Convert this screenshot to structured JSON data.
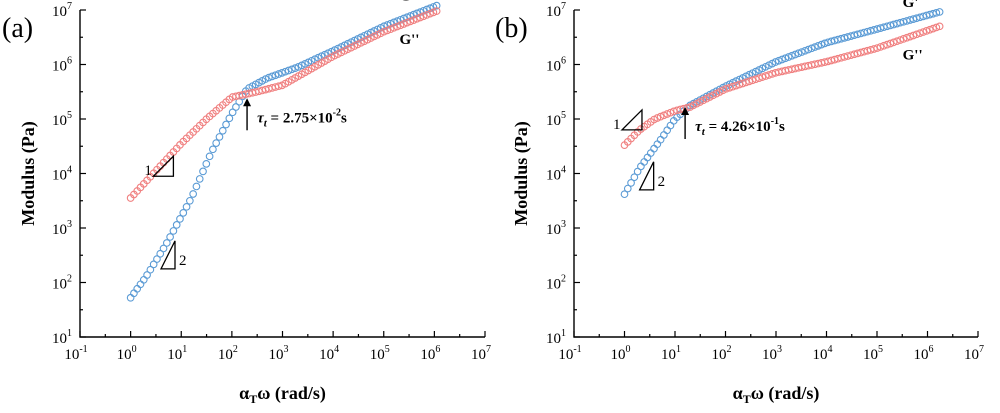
{
  "chart_data": [
    {
      "panel": "(a)",
      "type": "scatter",
      "xlabel_base": "α",
      "xlabel_sub": "T",
      "xlabel_rest": "ω (rad/s)",
      "ylabel": "Modulus (Pa)",
      "xscale": "log",
      "yscale": "log",
      "xlim_exp": [
        -1,
        7
      ],
      "ylim_exp": [
        1,
        7
      ],
      "x_tick_exponents": [
        "-1",
        "0",
        "1",
        "2",
        "3",
        "4",
        "5",
        "6",
        "7"
      ],
      "y_tick_exponents": [
        "1",
        "2",
        "3",
        "4",
        "5",
        "6",
        "7"
      ],
      "tick_base": "10",
      "series": [
        {
          "name": "G'",
          "color": "#5b9bd5",
          "curve": [
            [
              0,
              1.72
            ],
            [
              0.3,
              2.1
            ],
            [
              0.7,
              2.7
            ],
            [
              1.2,
              3.55
            ],
            [
              1.6,
              4.4
            ],
            [
              2.0,
              5.1
            ],
            [
              2.3,
              5.55
            ],
            [
              2.7,
              5.75
            ],
            [
              3.3,
              5.95
            ],
            [
              4.0,
              6.25
            ],
            [
              5.0,
              6.7
            ],
            [
              6.1,
              7.1
            ]
          ]
        },
        {
          "name": "G''",
          "color": "#f08080",
          "curve": [
            [
              0,
              3.55
            ],
            [
              0.5,
              4.05
            ],
            [
              1.0,
              4.55
            ],
            [
              1.5,
              5.0
            ],
            [
              2.0,
              5.4
            ],
            [
              2.5,
              5.5
            ],
            [
              3.0,
              5.62
            ],
            [
              4.0,
              6.15
            ],
            [
              5.0,
              6.6
            ],
            [
              6.1,
              7.0
            ]
          ]
        }
      ],
      "series_labels": [
        "G'",
        "G''"
      ],
      "annotations": {
        "crossover": {
          "tau_symbol": "τ",
          "tau_sub": "t",
          "text": " = 2.75×10",
          "exponent": "-2",
          "unit": "s",
          "arrow_x_exp": 2.3,
          "arrow_tip_y_exp": 5.38
        },
        "slope_g2": {
          "label": "1",
          "slope": 1,
          "x_exp": 0.45,
          "y_exp": 3.95
        },
        "slope_g1": {
          "label": "2",
          "slope": 2,
          "x_exp": 0.6,
          "y_exp": 2.25
        }
      }
    },
    {
      "panel": "(b)",
      "type": "scatter",
      "xlabel_base": "α",
      "xlabel_sub": "T",
      "xlabel_rest": "ω (rad/s)",
      "ylabel": "Modulus (Pa)",
      "xscale": "log",
      "yscale": "log",
      "xlim_exp": [
        -1,
        7
      ],
      "ylim_exp": [
        1,
        7
      ],
      "x_tick_exponents": [
        "-1",
        "0",
        "1",
        "2",
        "3",
        "4",
        "5",
        "6",
        "7"
      ],
      "y_tick_exponents": [
        "1",
        "2",
        "3",
        "4",
        "5",
        "6",
        "7"
      ],
      "tick_base": "10",
      "series": [
        {
          "name": "G'",
          "color": "#5b9bd5",
          "curve": [
            [
              0,
              3.62
            ],
            [
              0.3,
              4.1
            ],
            [
              0.7,
              4.6
            ],
            [
              1.0,
              5.0
            ],
            [
              1.3,
              5.25
            ],
            [
              2.0,
              5.6
            ],
            [
              3.0,
              6.05
            ],
            [
              4.0,
              6.4
            ],
            [
              5.0,
              6.65
            ],
            [
              6.3,
              6.98
            ]
          ]
        },
        {
          "name": "G''",
          "color": "#f08080",
          "curve": [
            [
              0,
              4.52
            ],
            [
              0.3,
              4.8
            ],
            [
              0.6,
              5.0
            ],
            [
              1.0,
              5.15
            ],
            [
              1.3,
              5.22
            ],
            [
              2.0,
              5.55
            ],
            [
              3.0,
              5.85
            ],
            [
              4.0,
              6.05
            ],
            [
              5.0,
              6.3
            ],
            [
              6.3,
              6.72
            ]
          ]
        }
      ],
      "series_labels": [
        "G'",
        "G''"
      ],
      "annotations": {
        "crossover": {
          "tau_symbol": "τ",
          "tau_sub": "t",
          "text": " = 4.26×10",
          "exponent": "-1",
          "unit": "s",
          "arrow_x_exp": 1.2,
          "arrow_tip_y_exp": 5.22
        },
        "slope_g2": {
          "label": "1",
          "slope": 1,
          "x_exp": -0.05,
          "y_exp": 4.8
        },
        "slope_g1": {
          "label": "2",
          "slope": 2,
          "x_exp": 0.3,
          "y_exp": 3.7
        }
      }
    }
  ]
}
